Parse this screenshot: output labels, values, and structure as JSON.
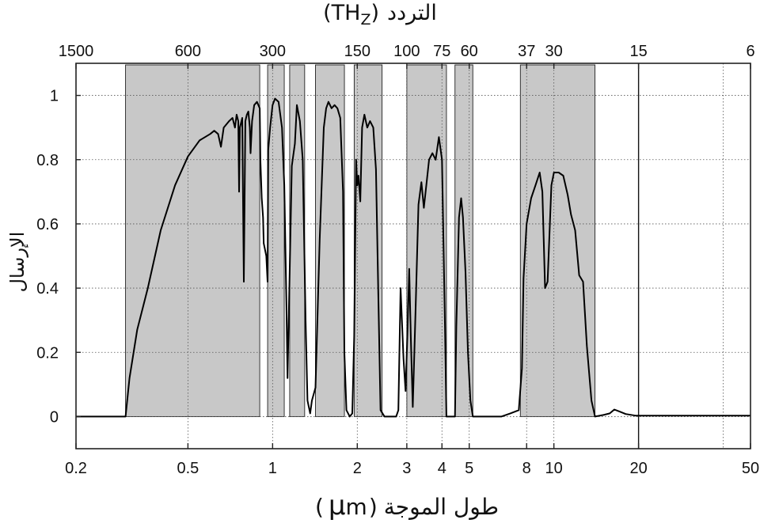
{
  "chart_data": {
    "type": "area",
    "top_axis_title": "التردد (THz)",
    "top_axis_title_ar": "التردد",
    "top_axis_title_unit": "(TH",
    "top_axis_title_unit_sub": "Z",
    "top_axis_title_unit_close": ")",
    "xlabel": "طول الموجة (μm)",
    "xlabel_ar": "طول الموجة",
    "xlabel_unit_open": "(",
    "xlabel_unit_mu": "μ",
    "xlabel_unit_rest": "m",
    "xlabel_unit_close": ")",
    "ylabel": "الإرسال",
    "x_scale": "log",
    "xlim": [
      0.2,
      50
    ],
    "ylim": [
      -0.1,
      1.1
    ],
    "x_ticks": [
      0.2,
      0.5,
      1,
      2,
      3,
      4,
      5,
      8,
      10,
      20,
      50
    ],
    "x_tick_labels": [
      "0.2",
      "0.5",
      "1",
      "2",
      "3",
      "4",
      "5",
      "8",
      "10",
      "20",
      "50"
    ],
    "y_ticks": [
      0,
      0.2,
      0.4,
      0.6,
      0.8,
      1
    ],
    "y_tick_labels": [
      "0",
      "0.2",
      "0.4",
      "0.6",
      "0.8",
      "1"
    ],
    "top_ticks": [
      {
        "label": "1500",
        "wavelength": 0.2
      },
      {
        "label": "600",
        "wavelength": 0.5
      },
      {
        "label": "300",
        "wavelength": 1
      },
      {
        "label": "150",
        "wavelength": 2
      },
      {
        "label": "100",
        "wavelength": 3
      },
      {
        "label": "75",
        "wavelength": 4
      },
      {
        "label": "60",
        "wavelength": 5
      },
      {
        "label": "37",
        "wavelength": 8
      },
      {
        "label": "30",
        "wavelength": 10
      },
      {
        "label": "15",
        "wavelength": 20
      },
      {
        "label": "6",
        "wavelength": 50
      }
    ],
    "vertical_gridlines": [
      0.5,
      1,
      2,
      3,
      4,
      5,
      8,
      10,
      20,
      40
    ],
    "grid": true,
    "bands": [
      [
        0.3,
        0.9
      ],
      [
        0.96,
        1.1
      ],
      [
        1.15,
        1.3
      ],
      [
        1.42,
        1.8
      ],
      [
        1.95,
        2.45
      ],
      [
        3.0,
        4.15
      ],
      [
        4.45,
        5.15
      ],
      [
        7.6,
        14.0
      ]
    ],
    "series": [
      {
        "color": "#000000",
        "points": [
          [
            0.2,
            0.0
          ],
          [
            0.3,
            0.0
          ],
          [
            0.31,
            0.12
          ],
          [
            0.33,
            0.27
          ],
          [
            0.36,
            0.4
          ],
          [
            0.4,
            0.58
          ],
          [
            0.45,
            0.72
          ],
          [
            0.5,
            0.81
          ],
          [
            0.55,
            0.86
          ],
          [
            0.6,
            0.88
          ],
          [
            0.62,
            0.89
          ],
          [
            0.64,
            0.88
          ],
          [
            0.655,
            0.84
          ],
          [
            0.67,
            0.9
          ],
          [
            0.7,
            0.92
          ],
          [
            0.72,
            0.93
          ],
          [
            0.735,
            0.9
          ],
          [
            0.745,
            0.94
          ],
          [
            0.755,
            0.92
          ],
          [
            0.76,
            0.7
          ],
          [
            0.765,
            0.9
          ],
          [
            0.78,
            0.93
          ],
          [
            0.79,
            0.42
          ],
          [
            0.8,
            0.92
          ],
          [
            0.81,
            0.94
          ],
          [
            0.82,
            0.95
          ],
          [
            0.83,
            0.9
          ],
          [
            0.835,
            0.82
          ],
          [
            0.845,
            0.92
          ],
          [
            0.86,
            0.97
          ],
          [
            0.88,
            0.98
          ],
          [
            0.9,
            0.96
          ],
          [
            0.905,
            0.8
          ],
          [
            0.915,
            0.68
          ],
          [
            0.925,
            0.62
          ],
          [
            0.93,
            0.54
          ],
          [
            0.95,
            0.5
          ],
          [
            0.96,
            0.42
          ],
          [
            0.965,
            0.83
          ],
          [
            0.98,
            0.9
          ],
          [
            1.0,
            0.97
          ],
          [
            1.02,
            0.99
          ],
          [
            1.05,
            0.98
          ],
          [
            1.08,
            0.9
          ],
          [
            1.1,
            0.72
          ],
          [
            1.12,
            0.35
          ],
          [
            1.13,
            0.12
          ],
          [
            1.15,
            0.45
          ],
          [
            1.17,
            0.78
          ],
          [
            1.2,
            0.85
          ],
          [
            1.22,
            0.97
          ],
          [
            1.25,
            0.92
          ],
          [
            1.28,
            0.8
          ],
          [
            1.31,
            0.3
          ],
          [
            1.33,
            0.05
          ],
          [
            1.36,
            0.01
          ],
          [
            1.38,
            0.05
          ],
          [
            1.42,
            0.09
          ],
          [
            1.47,
            0.55
          ],
          [
            1.52,
            0.9
          ],
          [
            1.55,
            0.96
          ],
          [
            1.58,
            0.98
          ],
          [
            1.62,
            0.96
          ],
          [
            1.66,
            0.97
          ],
          [
            1.7,
            0.96
          ],
          [
            1.74,
            0.93
          ],
          [
            1.78,
            0.7
          ],
          [
            1.8,
            0.2
          ],
          [
            1.83,
            0.02
          ],
          [
            1.88,
            0.0
          ],
          [
            1.92,
            0.01
          ],
          [
            1.95,
            0.25
          ],
          [
            1.98,
            0.8
          ],
          [
            2.0,
            0.72
          ],
          [
            2.02,
            0.75
          ],
          [
            2.05,
            0.67
          ],
          [
            2.08,
            0.9
          ],
          [
            2.12,
            0.94
          ],
          [
            2.17,
            0.9
          ],
          [
            2.22,
            0.92
          ],
          [
            2.28,
            0.9
          ],
          [
            2.33,
            0.77
          ],
          [
            2.38,
            0.35
          ],
          [
            2.42,
            0.02
          ],
          [
            2.5,
            0.0
          ],
          [
            2.75,
            0.0
          ],
          [
            2.8,
            0.02
          ],
          [
            2.85,
            0.4
          ],
          [
            2.92,
            0.18
          ],
          [
            2.97,
            0.08
          ],
          [
            3.02,
            0.28
          ],
          [
            3.06,
            0.46
          ],
          [
            3.1,
            0.25
          ],
          [
            3.15,
            0.03
          ],
          [
            3.22,
            0.32
          ],
          [
            3.3,
            0.66
          ],
          [
            3.38,
            0.73
          ],
          [
            3.45,
            0.65
          ],
          [
            3.52,
            0.72
          ],
          [
            3.6,
            0.8
          ],
          [
            3.7,
            0.82
          ],
          [
            3.8,
            0.8
          ],
          [
            3.9,
            0.87
          ],
          [
            4.0,
            0.8
          ],
          [
            4.1,
            0.28
          ],
          [
            4.15,
            0.0
          ],
          [
            4.45,
            0.0
          ],
          [
            4.5,
            0.28
          ],
          [
            4.6,
            0.62
          ],
          [
            4.68,
            0.68
          ],
          [
            4.75,
            0.62
          ],
          [
            4.85,
            0.45
          ],
          [
            4.95,
            0.2
          ],
          [
            5.05,
            0.05
          ],
          [
            5.15,
            0.0
          ],
          [
            6.5,
            0.0
          ],
          [
            7.0,
            0.01
          ],
          [
            7.5,
            0.02
          ],
          [
            7.7,
            0.15
          ],
          [
            7.8,
            0.43
          ],
          [
            8.0,
            0.6
          ],
          [
            8.3,
            0.68
          ],
          [
            8.6,
            0.72
          ],
          [
            8.9,
            0.76
          ],
          [
            9.1,
            0.7
          ],
          [
            9.3,
            0.4
          ],
          [
            9.5,
            0.42
          ],
          [
            9.8,
            0.72
          ],
          [
            10.0,
            0.76
          ],
          [
            10.4,
            0.76
          ],
          [
            10.8,
            0.75
          ],
          [
            11.2,
            0.69
          ],
          [
            11.5,
            0.63
          ],
          [
            11.9,
            0.58
          ],
          [
            12.3,
            0.44
          ],
          [
            12.7,
            0.42
          ],
          [
            13.1,
            0.22
          ],
          [
            13.6,
            0.05
          ],
          [
            14.0,
            0.0
          ],
          [
            15.0,
            0.005
          ],
          [
            15.8,
            0.01
          ],
          [
            16.4,
            0.022
          ],
          [
            17.2,
            0.015
          ],
          [
            18.0,
            0.008
          ],
          [
            19.5,
            0.003
          ],
          [
            22.0,
            0.003
          ],
          [
            30.0,
            0.003
          ],
          [
            50.0,
            0.003
          ]
        ]
      }
    ]
  }
}
